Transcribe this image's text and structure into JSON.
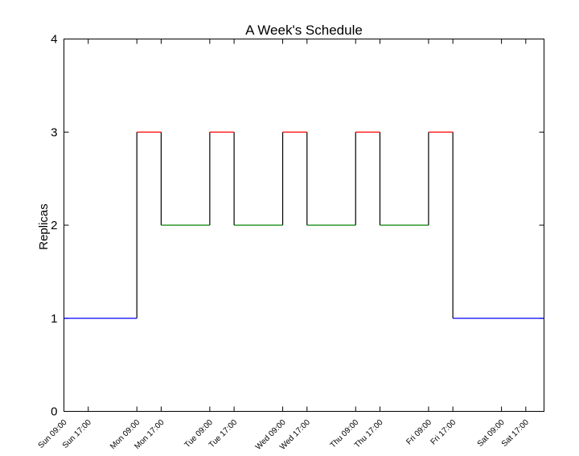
{
  "chart_data": {
    "type": "line",
    "title": "A Week's Schedule",
    "xlabel": "",
    "ylabel": "Replicas",
    "ylim": [
      0,
      4
    ],
    "yticks": [
      0,
      1,
      2,
      3,
      4
    ],
    "xlim": [
      "Sun 09:00",
      "Sat 23:00"
    ],
    "xtick_labels": [
      "Sun 09:00",
      "Sun 17:00",
      "Mon 09:00",
      "Mon 17:00",
      "Tue 09:00",
      "Tue 17:00",
      "Wed 09:00",
      "Wed 17:00",
      "Thu 09:00",
      "Thu 17:00",
      "Fri 09:00",
      "Fri 17:00",
      "Sat 09:00",
      "Sat 17:00"
    ],
    "grid": false,
    "legend": "none",
    "line_color": "#000000",
    "segments": [
      {
        "start": "Sun 09:00",
        "end": "Mon 09:00",
        "value": 1,
        "color": "#0000ff"
      },
      {
        "start": "Mon 09:00",
        "end": "Mon 17:00",
        "value": 3,
        "color": "#ff0000"
      },
      {
        "start": "Mon 17:00",
        "end": "Tue 09:00",
        "value": 2,
        "color": "#008000"
      },
      {
        "start": "Tue 09:00",
        "end": "Tue 17:00",
        "value": 3,
        "color": "#ff0000"
      },
      {
        "start": "Tue 17:00",
        "end": "Wed 09:00",
        "value": 2,
        "color": "#008000"
      },
      {
        "start": "Wed 09:00",
        "end": "Wed 17:00",
        "value": 3,
        "color": "#ff0000"
      },
      {
        "start": "Wed 17:00",
        "end": "Thu 09:00",
        "value": 2,
        "color": "#008000"
      },
      {
        "start": "Thu 09:00",
        "end": "Thu 17:00",
        "value": 3,
        "color": "#ff0000"
      },
      {
        "start": "Thu 17:00",
        "end": "Fri 09:00",
        "value": 2,
        "color": "#008000"
      },
      {
        "start": "Fri 09:00",
        "end": "Fri 17:00",
        "value": 3,
        "color": "#ff0000"
      },
      {
        "start": "Fri 17:00",
        "end": "Sat 23:00",
        "value": 1,
        "color": "#0000ff"
      }
    ]
  }
}
